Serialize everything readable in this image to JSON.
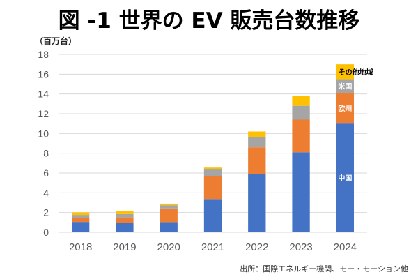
{
  "chart_data": {
    "type": "bar",
    "stacked": true,
    "title": "図 -1 世界の EV 販売台数推移",
    "ylabel": "（百万台）",
    "xlabel": "",
    "ylim": [
      0,
      18
    ],
    "yticks": [
      0,
      2,
      4,
      6,
      8,
      10,
      12,
      14,
      16,
      18
    ],
    "grid": true,
    "categories": [
      "2018",
      "2019",
      "2020",
      "2021",
      "2022",
      "2023",
      "2024"
    ],
    "series": [
      {
        "name": "中国",
        "color": "#4472C4",
        "label_color": "#ffffff",
        "values": [
          1.05,
          0.93,
          1.03,
          3.3,
          5.9,
          8.1,
          11.0
        ]
      },
      {
        "name": "欧州",
        "color": "#ED7D31",
        "label_color": "#ffffff",
        "values": [
          0.38,
          0.58,
          1.38,
          2.35,
          2.7,
          3.3,
          3.1
        ]
      },
      {
        "name": "米国",
        "color": "#A5A5A5",
        "label_color": "#ffffff",
        "values": [
          0.33,
          0.33,
          0.33,
          0.7,
          1.0,
          1.4,
          1.4
        ]
      },
      {
        "name": "その他地域",
        "color": "#FFC000",
        "label_color": "#000000",
        "values": [
          0.26,
          0.31,
          0.16,
          0.2,
          0.6,
          1.0,
          1.5
        ]
      }
    ],
    "series_labels_on": "2024",
    "source": "出所：国際エネルギー機関、モー・モーション他"
  }
}
